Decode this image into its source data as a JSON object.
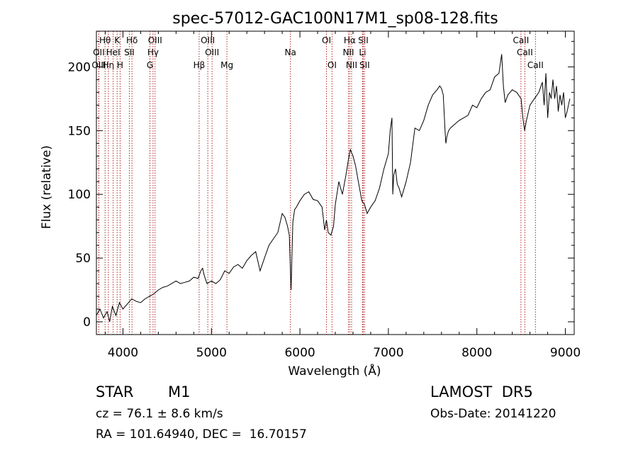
{
  "chart_data": {
    "type": "line",
    "title": "spec-57012-GAC100N17M1_sp08-128.fits",
    "xlabel": "Wavelength (Å)",
    "ylabel": "Flux (relative)",
    "xlim": [
      3700,
      9100
    ],
    "ylim": [
      -10,
      228
    ],
    "x_ticks": [
      4000,
      5000,
      6000,
      7000,
      8000,
      9000
    ],
    "y_ticks": [
      0,
      50,
      100,
      150,
      200
    ],
    "grid": false,
    "series": [
      {
        "color": "#000000",
        "x": [
          3700,
          3740,
          3780,
          3820,
          3850,
          3880,
          3920,
          3960,
          4000,
          4050,
          4100,
          4150,
          4200,
          4250,
          4300,
          4350,
          4400,
          4450,
          4500,
          4550,
          4600,
          4650,
          4700,
          4750,
          4800,
          4850,
          4880,
          4900,
          4920,
          4950,
          5000,
          5050,
          5100,
          5150,
          5200,
          5250,
          5300,
          5350,
          5400,
          5450,
          5500,
          5550,
          5600,
          5650,
          5700,
          5750,
          5800,
          5830,
          5860,
          5880,
          5900,
          5920,
          5940,
          5960,
          6000,
          6050,
          6100,
          6150,
          6200,
          6250,
          6280,
          6300,
          6320,
          6350,
          6380,
          6400,
          6440,
          6480,
          6520,
          6550,
          6570,
          6600,
          6630,
          6660,
          6700,
          6730,
          6760,
          6800,
          6850,
          6900,
          6950,
          7000,
          7020,
          7040,
          7050,
          7060,
          7080,
          7100,
          7120,
          7150,
          7200,
          7250,
          7300,
          7350,
          7400,
          7450,
          7500,
          7550,
          7580,
          7600,
          7620,
          7640,
          7650,
          7660,
          7680,
          7700,
          7750,
          7800,
          7850,
          7900,
          7950,
          8000,
          8050,
          8100,
          8150,
          8200,
          8250,
          8280,
          8300,
          8320,
          8350,
          8400,
          8450,
          8500,
          8520,
          8540,
          8560,
          8600,
          8650,
          8700,
          8740,
          8760,
          8780,
          8800,
          8820,
          8840,
          8860,
          8880,
          8900,
          8920,
          8940,
          8960,
          8980,
          9000,
          9020,
          9050
        ],
        "y": [
          5,
          10,
          3,
          8,
          0,
          12,
          5,
          15,
          10,
          14,
          18,
          16,
          15,
          18,
          20,
          22,
          25,
          27,
          28,
          30,
          32,
          30,
          31,
          32,
          35,
          34,
          40,
          42,
          36,
          30,
          32,
          30,
          33,
          40,
          38,
          43,
          45,
          42,
          48,
          52,
          55,
          40,
          50,
          60,
          65,
          70,
          85,
          82,
          75,
          68,
          25,
          78,
          88,
          90,
          95,
          100,
          102,
          96,
          95,
          90,
          72,
          80,
          70,
          68,
          75,
          92,
          110,
          100,
          115,
          128,
          135,
          130,
          122,
          110,
          95,
          92,
          85,
          90,
          95,
          105,
          120,
          132,
          150,
          160,
          100,
          115,
          120,
          108,
          105,
          98,
          110,
          125,
          152,
          150,
          158,
          170,
          178,
          182,
          185,
          183,
          178,
          150,
          140,
          145,
          150,
          152,
          155,
          158,
          160,
          162,
          170,
          168,
          175,
          180,
          182,
          192,
          195,
          210,
          185,
          172,
          178,
          182,
          180,
          175,
          160,
          150,
          158,
          170,
          175,
          180,
          188,
          170,
          195,
          160,
          180,
          175,
          190,
          175,
          185,
          165,
          178,
          170,
          180,
          160,
          165,
          175
        ]
      }
    ],
    "line_markers": [
      {
        "name": "Hθ",
        "x": 3798,
        "row": 1
      },
      {
        "name": "OII",
        "x": 3727,
        "row": 2
      },
      {
        "name": "OIII",
        "x": 3727,
        "row": 3
      },
      {
        "name": "Hη",
        "x": 3835,
        "row": 3
      },
      {
        "name": "K",
        "x": 3934,
        "row": 1
      },
      {
        "name": "HeI",
        "x": 3889,
        "row": 2
      },
      {
        "name": "H",
        "x": 3968,
        "row": 3
      },
      {
        "name": "Hδ",
        "x": 4102,
        "row": 1
      },
      {
        "name": "SII",
        "x": 4072,
        "row": 2
      },
      {
        "name": "OIII",
        "x": 4363,
        "row": 1
      },
      {
        "name": "Hγ",
        "x": 4340,
        "row": 2
      },
      {
        "name": "G",
        "x": 4305,
        "row": 3
      },
      {
        "name": "OIII",
        "x": 4959,
        "row": 1
      },
      {
        "name": "OIII",
        "x": 5007,
        "row": 2
      },
      {
        "name": "Hβ",
        "x": 4861,
        "row": 3
      },
      {
        "name": "Mg",
        "x": 5175,
        "row": 3
      },
      {
        "name": "Na",
        "x": 5893,
        "row": 2
      },
      {
        "name": "OI",
        "x": 6300,
        "row": 1
      },
      {
        "name": "OI",
        "x": 6363,
        "row": 3
      },
      {
        "name": "Hα",
        "x": 6563,
        "row": 1
      },
      {
        "name": "NII",
        "x": 6548,
        "row": 2
      },
      {
        "name": "NII",
        "x": 6584,
        "row": 3
      },
      {
        "name": "SII",
        "x": 6716,
        "row": 1
      },
      {
        "name": "Li",
        "x": 6708,
        "row": 2
      },
      {
        "name": "SII",
        "x": 6731,
        "row": 3
      },
      {
        "name": "CaII",
        "x": 8498,
        "row": 1
      },
      {
        "name": "CaII",
        "x": 8542,
        "row": 2
      },
      {
        "name": "CaII",
        "x": 8662,
        "row": 3
      }
    ]
  },
  "info": {
    "object_type": "STAR",
    "subclass": "M1",
    "survey": "LAMOST  DR5",
    "cz": "cz = 76.1 ± 8.6 km/s",
    "obs_date": "Obs-Date: 20141220",
    "coords": "RA = 101.64940, DEC =  16.70157"
  },
  "colors": {
    "marker_line": "#b22222",
    "spectrum": "#000000",
    "axes": "#000000"
  }
}
